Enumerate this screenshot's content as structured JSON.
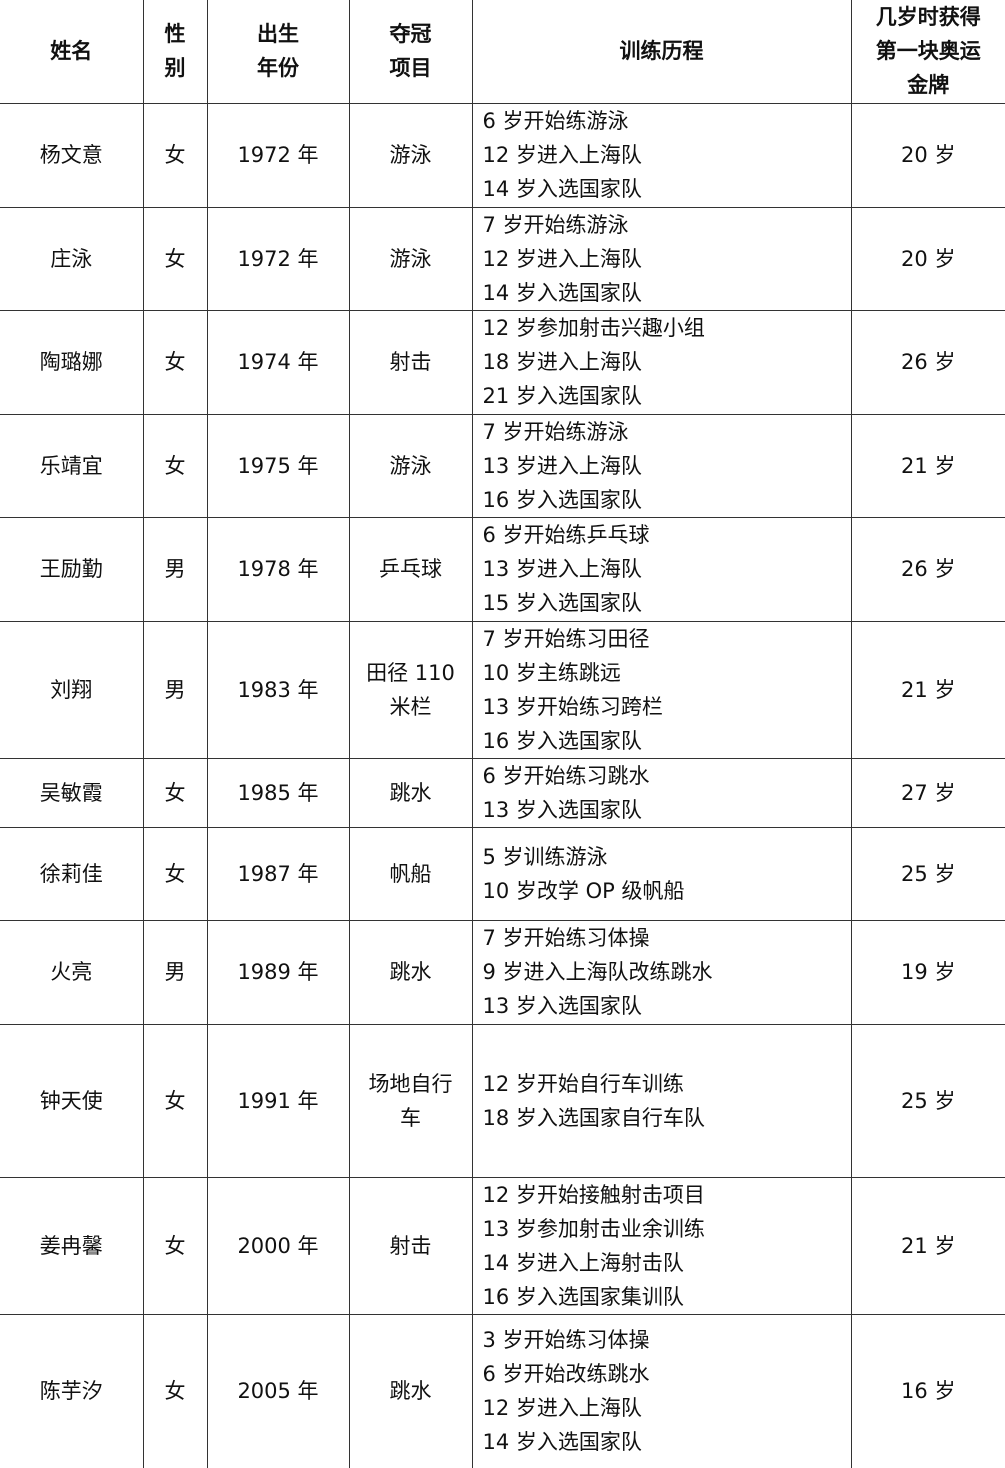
{
  "headers": [
    "姓名",
    "性别",
    "出生年份",
    "夺冠项目",
    "训练历程",
    "几岁时获得第一块奥运金牌"
  ],
  "header_lines": [
    [
      "姓名"
    ],
    [
      "性",
      "别"
    ],
    [
      "出生",
      "年份"
    ],
    [
      "夺冠",
      "项目"
    ],
    [
      "训练历程"
    ],
    [
      "几岁时获得",
      "第一块奥运",
      "金牌"
    ]
  ],
  "rows": [
    {
      "name": "杨文意",
      "gender": "女",
      "birth": "1972 年",
      "event": [
        "游泳"
      ],
      "training": [
        "6 岁开始练游泳",
        "12 岁进入上海队",
        "14 岁入选国家队"
      ],
      "age": "20 岁"
    },
    {
      "name": "庄泳",
      "gender": "女",
      "birth": "1972 年",
      "event": [
        "游泳"
      ],
      "training": [
        "7 岁开始练游泳",
        "12 岁进入上海队",
        "14 岁入选国家队"
      ],
      "age": "20 岁"
    },
    {
      "name": "陶璐娜",
      "gender": "女",
      "birth": "1974 年",
      "event": [
        "射击"
      ],
      "training": [
        "12 岁参加射击兴趣小组",
        "18 岁进入上海队",
        "21 岁入选国家队"
      ],
      "age": "26 岁"
    },
    {
      "name": "乐靖宜",
      "gender": "女",
      "birth": "1975 年",
      "event": [
        "游泳"
      ],
      "training": [
        "7 岁开始练游泳",
        "13 岁进入上海队",
        "16 岁入选国家队"
      ],
      "age": "21 岁"
    },
    {
      "name": "王励勤",
      "gender": "男",
      "birth": "1978 年",
      "event": [
        "乒乓球"
      ],
      "training": [
        "6 岁开始练乒乓球",
        "13 岁进入上海队",
        "15 岁入选国家队"
      ],
      "age": "26 岁"
    },
    {
      "name": "刘翔",
      "gender": "男",
      "birth": "1983 年",
      "event": [
        "田径 110",
        "米栏"
      ],
      "training": [
        "7 岁开始练习田径",
        "10 岁主练跳远",
        "13 岁开始练习跨栏",
        "16 岁入选国家队"
      ],
      "age": "21 岁"
    },
    {
      "name": "吴敏霞",
      "gender": "女",
      "birth": "1985 年",
      "event": [
        "跳水"
      ],
      "training": [
        "6 岁开始练习跳水",
        "13 岁入选国家队"
      ],
      "age": "27 岁"
    },
    {
      "name": "徐莉佳",
      "gender": "女",
      "birth": "1987 年",
      "event": [
        "帆船"
      ],
      "training": [
        "5 岁训练游泳",
        "10 岁改学 OP 级帆船"
      ],
      "age": "25 岁"
    },
    {
      "name": "火亮",
      "gender": "男",
      "birth": "1989 年",
      "event": [
        "跳水"
      ],
      "training": [
        "7 岁开始练习体操",
        "9 岁进入上海队改练跳水",
        "13 岁入选国家队"
      ],
      "age": "19 岁"
    },
    {
      "name": "钟天使",
      "gender": "女",
      "birth": "1991 年",
      "event": [
        "场地自行",
        "车"
      ],
      "training": [
        "12 岁开始自行车训练",
        "18 岁入选国家自行车队"
      ],
      "age": "25 岁"
    },
    {
      "name": "姜冉馨",
      "gender": "女",
      "birth": "2000 年",
      "event": [
        "射击"
      ],
      "training": [
        "12 岁开始接触射击项目",
        "13 岁参加射击业余训练",
        "14 岁进入上海射击队",
        "16 岁入选国家集训队"
      ],
      "age": "21 岁"
    },
    {
      "name": "陈芋汐",
      "gender": "女",
      "birth": "2005 年",
      "event": [
        "跳水"
      ],
      "training": [
        "3 岁开始练习体操",
        "6 岁开始改练跳水",
        "12 岁进入上海队",
        "14 岁入选国家队"
      ],
      "age": "16 岁"
    }
  ]
}
